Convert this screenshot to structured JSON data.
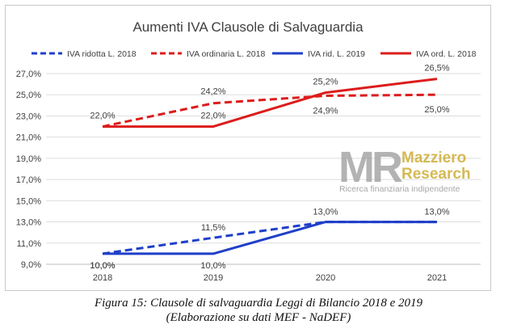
{
  "chart_data": {
    "type": "line",
    "title": "Aumenti IVA Clausole di Salvaguardia",
    "categories": [
      "2018",
      "2019",
      "2020",
      "2021"
    ],
    "ylim": [
      9,
      27
    ],
    "yticks": [
      "9,0%",
      "11,0%",
      "13,0%",
      "15,0%",
      "17,0%",
      "19,0%",
      "21,0%",
      "23,0%",
      "25,0%",
      "27,0%"
    ],
    "legend_position": "top",
    "grid": "horizontal",
    "series": [
      {
        "name": "IVA ridotta L. 2018",
        "values": [
          10.0,
          11.5,
          13.0,
          13.0
        ],
        "color": "#1f3fc9",
        "dashed": true,
        "labels": [
          "10,0%",
          "11,5%",
          "13,0%",
          "13,0%"
        ]
      },
      {
        "name": "IVA ordinaria L. 2018",
        "values": [
          22.0,
          24.2,
          24.9,
          25.0
        ],
        "color": "#dd1c1c",
        "dashed": true,
        "labels": [
          "22,0%",
          "24,2%",
          "24,9%",
          "25,0%"
        ]
      },
      {
        "name": "IVA rid. L. 2019",
        "values": [
          10.0,
          10.0,
          13.0,
          13.0
        ],
        "color": "#1f3fc9",
        "dashed": false,
        "labels": [
          "10,0%",
          "10,0%",
          "",
          ""
        ]
      },
      {
        "name": "IVA ord. L. 2018",
        "values": [
          22.0,
          22.0,
          25.2,
          26.5
        ],
        "color": "#dd1c1c",
        "dashed": false,
        "labels": [
          "",
          "22,0%",
          "25,2%",
          "26,5%"
        ]
      }
    ]
  },
  "watermark": {
    "logo_letters": "MR",
    "name_line1": "Mazziero",
    "name_line2": "Research",
    "tagline": "Ricerca finanziaria indipendente"
  },
  "caption": {
    "line1": "Figura 15: Clausole di salvaguardia Leggi di Bilancio 2018 e 2019",
    "line2": "(Elaborazione su dati MEF - NaDEF)"
  }
}
